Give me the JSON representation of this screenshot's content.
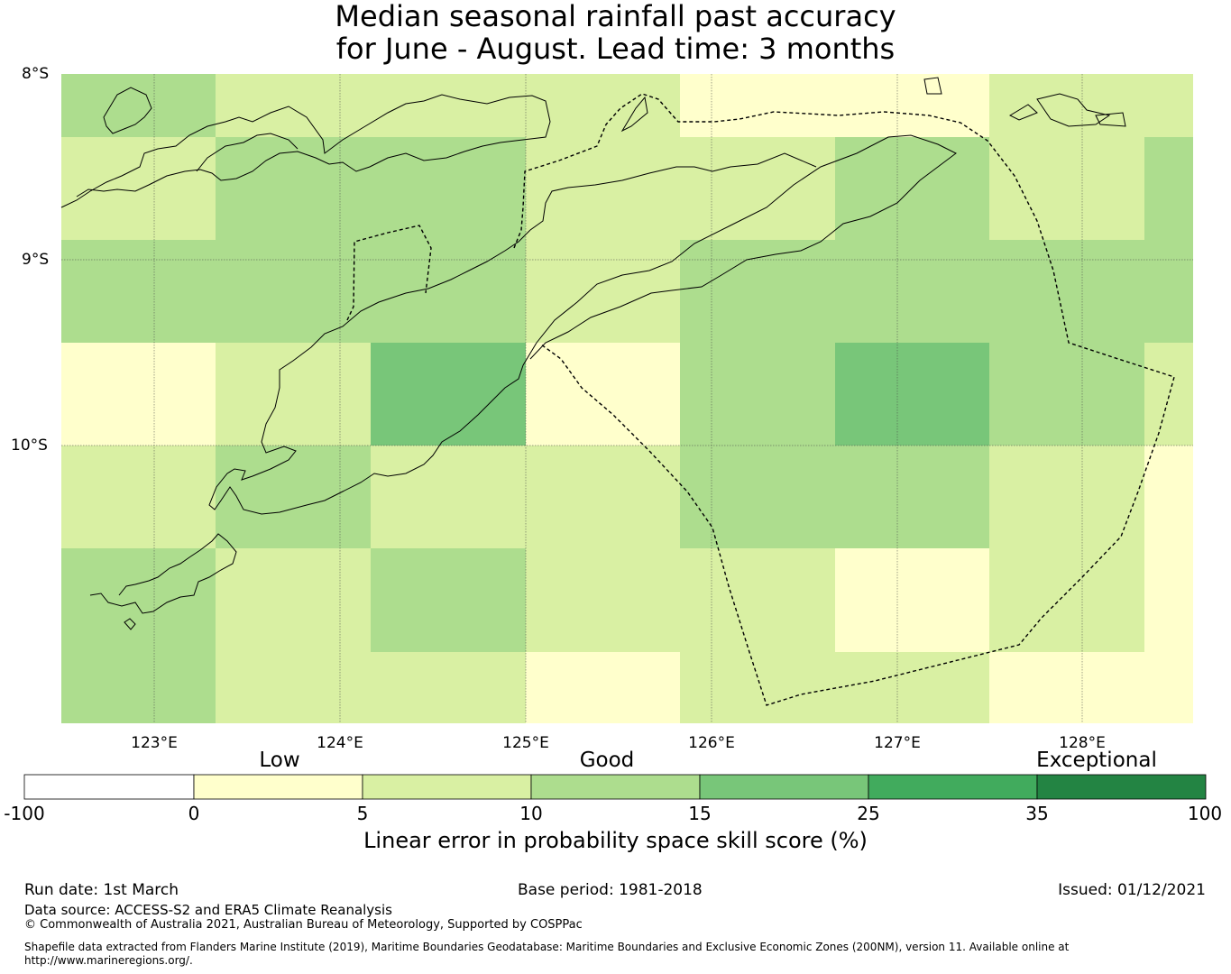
{
  "title": {
    "line1": "Median seasonal rainfall past accuracy",
    "line2": "for June - August. Lead time: 3 months"
  },
  "map": {
    "lat_labels": [
      "8°S",
      "9°S",
      "10°S"
    ],
    "lon_labels": [
      "123°E",
      "124°E",
      "125°E",
      "126°E",
      "127°E",
      "128°E"
    ],
    "grid_values": [
      [
        10,
        5,
        5,
        5,
        0,
        0,
        5,
        5
      ],
      [
        5,
        10,
        10,
        5,
        5,
        10,
        5,
        10
      ],
      [
        10,
        10,
        10,
        5,
        10,
        10,
        10,
        10
      ],
      [
        0,
        5,
        15,
        0,
        10,
        15,
        10,
        5
      ],
      [
        5,
        10,
        5,
        5,
        10,
        10,
        5,
        0
      ],
      [
        10,
        5,
        10,
        5,
        5,
        0,
        5,
        0
      ],
      [
        10,
        5,
        5,
        0,
        5,
        5,
        0,
        0
      ]
    ]
  },
  "colorbar": {
    "categories": [
      "Low",
      "Good",
      "Exceptional"
    ],
    "ticks": [
      "-100",
      "0",
      "5",
      "10",
      "15",
      "25",
      "35",
      "100"
    ],
    "colors": [
      "#ffffff",
      "#ffffcc",
      "#d9f0a3",
      "#addd8e",
      "#78c679",
      "#41ab5d",
      "#238443"
    ],
    "label": "Linear error in probability space skill score (%)"
  },
  "footer": {
    "run_date": "Run date: 1st March",
    "base_period": "Base period: 1981-2018",
    "issued": "Issued: 01/12/2021",
    "data_source": "Data source: ACCESS-S2 and ERA5 Climate Reanalysis",
    "copyright": "© Commonwealth of Australia 2021, Australian Bureau of Meteorology, Supported by COSPPac",
    "shapefile": "Shapefile data extracted from Flanders Marine Institute (2019), Maritime Boundaries Geodatabase: Maritime Boundaries and Exclusive Economic Zones (200NM), version 11. Available online at http://www.marineregions.org/."
  }
}
